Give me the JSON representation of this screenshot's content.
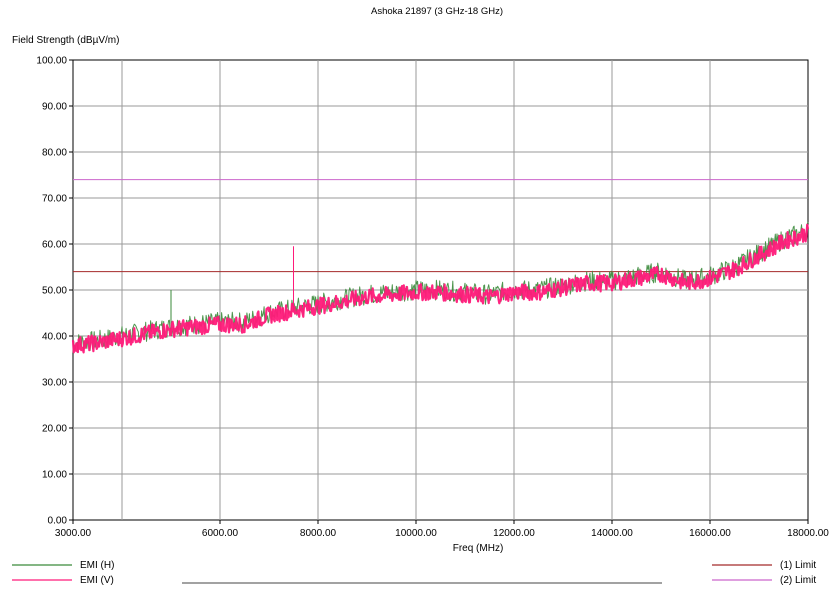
{
  "chart_data": {
    "type": "line",
    "title": "Ashoka 21897 (3 GHz-18 GHz)",
    "ylabel": "Field Strength (dBµV/m)",
    "xlabel": "Freq (MHz)",
    "xlim": [
      3000,
      18000
    ],
    "ylim": [
      0,
      100
    ],
    "x_ticks": [
      3000,
      6000,
      8000,
      10000,
      12000,
      14000,
      16000,
      18000
    ],
    "x_tick_labels": [
      "3000.00",
      "6000.00",
      "8000.00",
      "10000.00",
      "12000.00",
      "14000.00",
      "16000.00",
      "18000.00"
    ],
    "x_gridlines": [
      3000,
      4000,
      6000,
      8000,
      10000,
      12000,
      14000,
      16000,
      18000
    ],
    "y_ticks": [
      0,
      10,
      20,
      30,
      40,
      50,
      60,
      70,
      80,
      90,
      100
    ],
    "y_tick_labels": [
      "0.00",
      "10.00",
      "20.00",
      "30.00",
      "40.00",
      "50.00",
      "60.00",
      "70.00",
      "80.00",
      "90.00",
      "100.00"
    ],
    "grid": true,
    "series": [
      {
        "name": "EMI (H)",
        "color": "#3a8a3a",
        "x": [
          3000,
          3500,
          4000,
          4500,
          5000,
          5500,
          6000,
          6500,
          7000,
          7500,
          8000,
          8500,
          9000,
          9500,
          10000,
          10500,
          11000,
          11500,
          12000,
          12500,
          13000,
          13500,
          14000,
          14500,
          15000,
          15500,
          16000,
          16500,
          17000,
          17500,
          18000
        ],
        "y": [
          38.5,
          39,
          40,
          41,
          42,
          42.5,
          43,
          43,
          45,
          46,
          47,
          48,
          49,
          49.5,
          50,
          50,
          49.5,
          49,
          50,
          50,
          51,
          52,
          52,
          53,
          54,
          52,
          53,
          55,
          58,
          61,
          63
        ],
        "spikes": [
          {
            "x": 5000,
            "y": 50
          }
        ]
      },
      {
        "name": "EMI (V)",
        "color": "#ff1a7a",
        "x": [
          3000,
          3500,
          4000,
          4500,
          5000,
          5500,
          6000,
          6500,
          7000,
          7500,
          8000,
          8500,
          9000,
          9500,
          10000,
          10500,
          11000,
          11500,
          12000,
          12500,
          13000,
          13500,
          14000,
          14500,
          15000,
          15500,
          16000,
          16500,
          17000,
          17500,
          18000
        ],
        "y": [
          38,
          38.5,
          39.5,
          40.5,
          41.5,
          42,
          42.5,
          42.5,
          44.5,
          45.5,
          46.5,
          47.5,
          48.5,
          49,
          49.5,
          49.5,
          49,
          48.5,
          49.5,
          49.5,
          50.5,
          51.5,
          51.5,
          52.5,
          53.5,
          51.5,
          52.5,
          54.5,
          57.5,
          60.5,
          62.5
        ],
        "spikes": [
          {
            "x": 7500,
            "y": 59.5
          }
        ]
      }
    ],
    "limits": [
      {
        "name": "(1) Limit",
        "value": 54,
        "color": "#a52a2a"
      },
      {
        "name": "(2) Limit",
        "value": 74,
        "color": "#cc66cc"
      }
    ]
  }
}
